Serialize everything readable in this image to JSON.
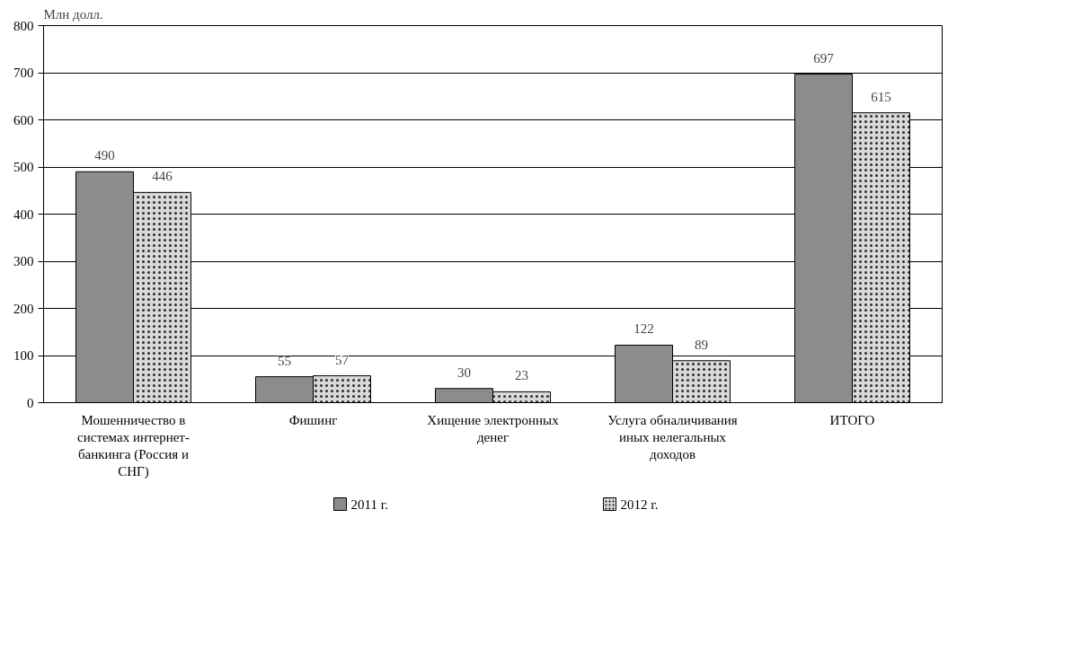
{
  "chart_data": {
    "type": "bar",
    "ylabel": "Млн долл.",
    "categories": [
      "Мошенничество в системах интернет-банкинга (Россия и СНГ)",
      "Фишинг",
      "Хищение электронных денег",
      "Услуга обналичивания иных нелегальных доходов",
      "ИТОГО"
    ],
    "series": [
      {
        "name": "2011 г.",
        "color": "#8c8c8c",
        "values": [
          490,
          55,
          30,
          122,
          697
        ]
      },
      {
        "name": "2012 г.",
        "color": "#d9d9d9",
        "values": [
          446,
          57,
          23,
          89,
          615
        ]
      }
    ],
    "ylim": [
      0,
      800
    ],
    "yticks": [
      0,
      100,
      200,
      300,
      400,
      500,
      600,
      700,
      800
    ],
    "grid": "y",
    "legend": "bottom",
    "data_labels": true
  }
}
